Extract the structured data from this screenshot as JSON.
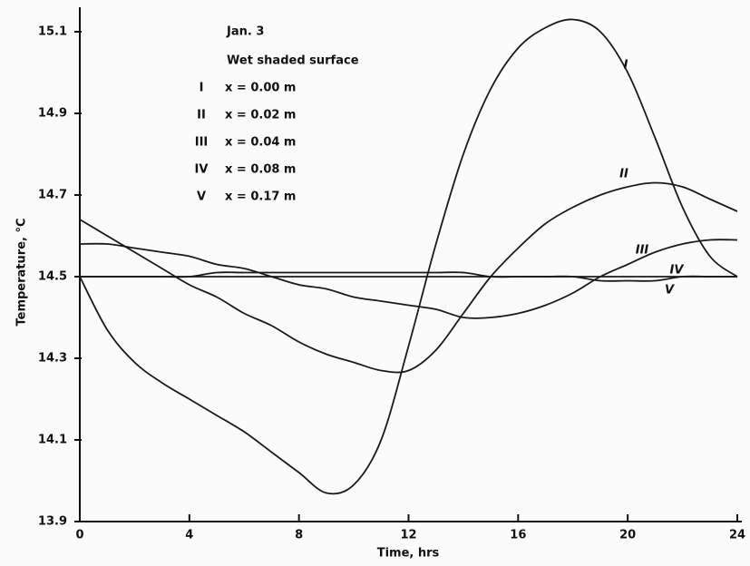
{
  "chart_data": {
    "type": "line",
    "annotations": [
      "Jan. 3",
      "Wet shaded surface"
    ],
    "xlabel": "Time,  hrs",
    "ylabel": "Temperature,  °C",
    "x": [
      0,
      1,
      2,
      3,
      4,
      5,
      6,
      7,
      8,
      9,
      10,
      11,
      12,
      13,
      14,
      15,
      16,
      17,
      18,
      19,
      20,
      21,
      22,
      23,
      24
    ],
    "xlim": [
      0,
      24
    ],
    "xticks": [
      0,
      4,
      8,
      12,
      16,
      20,
      24
    ],
    "ylim": [
      13.9,
      15.15
    ],
    "yticks": [
      13.9,
      14.1,
      14.3,
      14.5,
      14.7,
      14.9,
      15.1
    ],
    "series": [
      {
        "label": "I",
        "name": "x = 0.00 m",
        "color": "#1a1a1a",
        "values": [
          14.5,
          14.37,
          14.29,
          14.24,
          14.2,
          14.16,
          14.12,
          14.07,
          14.02,
          13.97,
          13.99,
          14.1,
          14.33,
          14.58,
          14.8,
          14.96,
          15.06,
          15.11,
          15.13,
          15.1,
          15.0,
          14.84,
          14.67,
          14.55,
          14.5
        ]
      },
      {
        "label": "II",
        "name": "x = 0.02 m",
        "color": "#1a1a1a",
        "values": [
          14.64,
          14.6,
          14.56,
          14.52,
          14.48,
          14.45,
          14.41,
          14.38,
          14.34,
          14.31,
          14.29,
          14.27,
          14.27,
          14.32,
          14.41,
          14.5,
          14.57,
          14.63,
          14.67,
          14.7,
          14.72,
          14.73,
          14.72,
          14.69,
          14.66
        ]
      },
      {
        "label": "III",
        "name": "x = 0.04 m",
        "color": "#1a1a1a",
        "values": [
          14.58,
          14.58,
          14.57,
          14.56,
          14.55,
          14.53,
          14.52,
          14.5,
          14.48,
          14.47,
          14.45,
          14.44,
          14.43,
          14.42,
          14.4,
          14.4,
          14.41,
          14.43,
          14.46,
          14.5,
          14.53,
          14.56,
          14.58,
          14.59,
          14.59
        ]
      },
      {
        "label": "IV",
        "name": "x = 0.08 m",
        "color": "#1a1a1a",
        "values": [
          14.5,
          14.5,
          14.5,
          14.5,
          14.5,
          14.51,
          14.51,
          14.51,
          14.51,
          14.51,
          14.51,
          14.51,
          14.51,
          14.51,
          14.51,
          14.5,
          14.5,
          14.5,
          14.5,
          14.49,
          14.49,
          14.49,
          14.5,
          14.5,
          14.5
        ]
      },
      {
        "label": "V",
        "name": "x = 0.17 m",
        "color": "#1a1a1a",
        "values": [
          14.5,
          14.5,
          14.5,
          14.5,
          14.5,
          14.5,
          14.5,
          14.5,
          14.5,
          14.5,
          14.5,
          14.5,
          14.5,
          14.5,
          14.5,
          14.5,
          14.5,
          14.5,
          14.5,
          14.5,
          14.5,
          14.5,
          14.5,
          14.5,
          14.5
        ]
      }
    ]
  }
}
